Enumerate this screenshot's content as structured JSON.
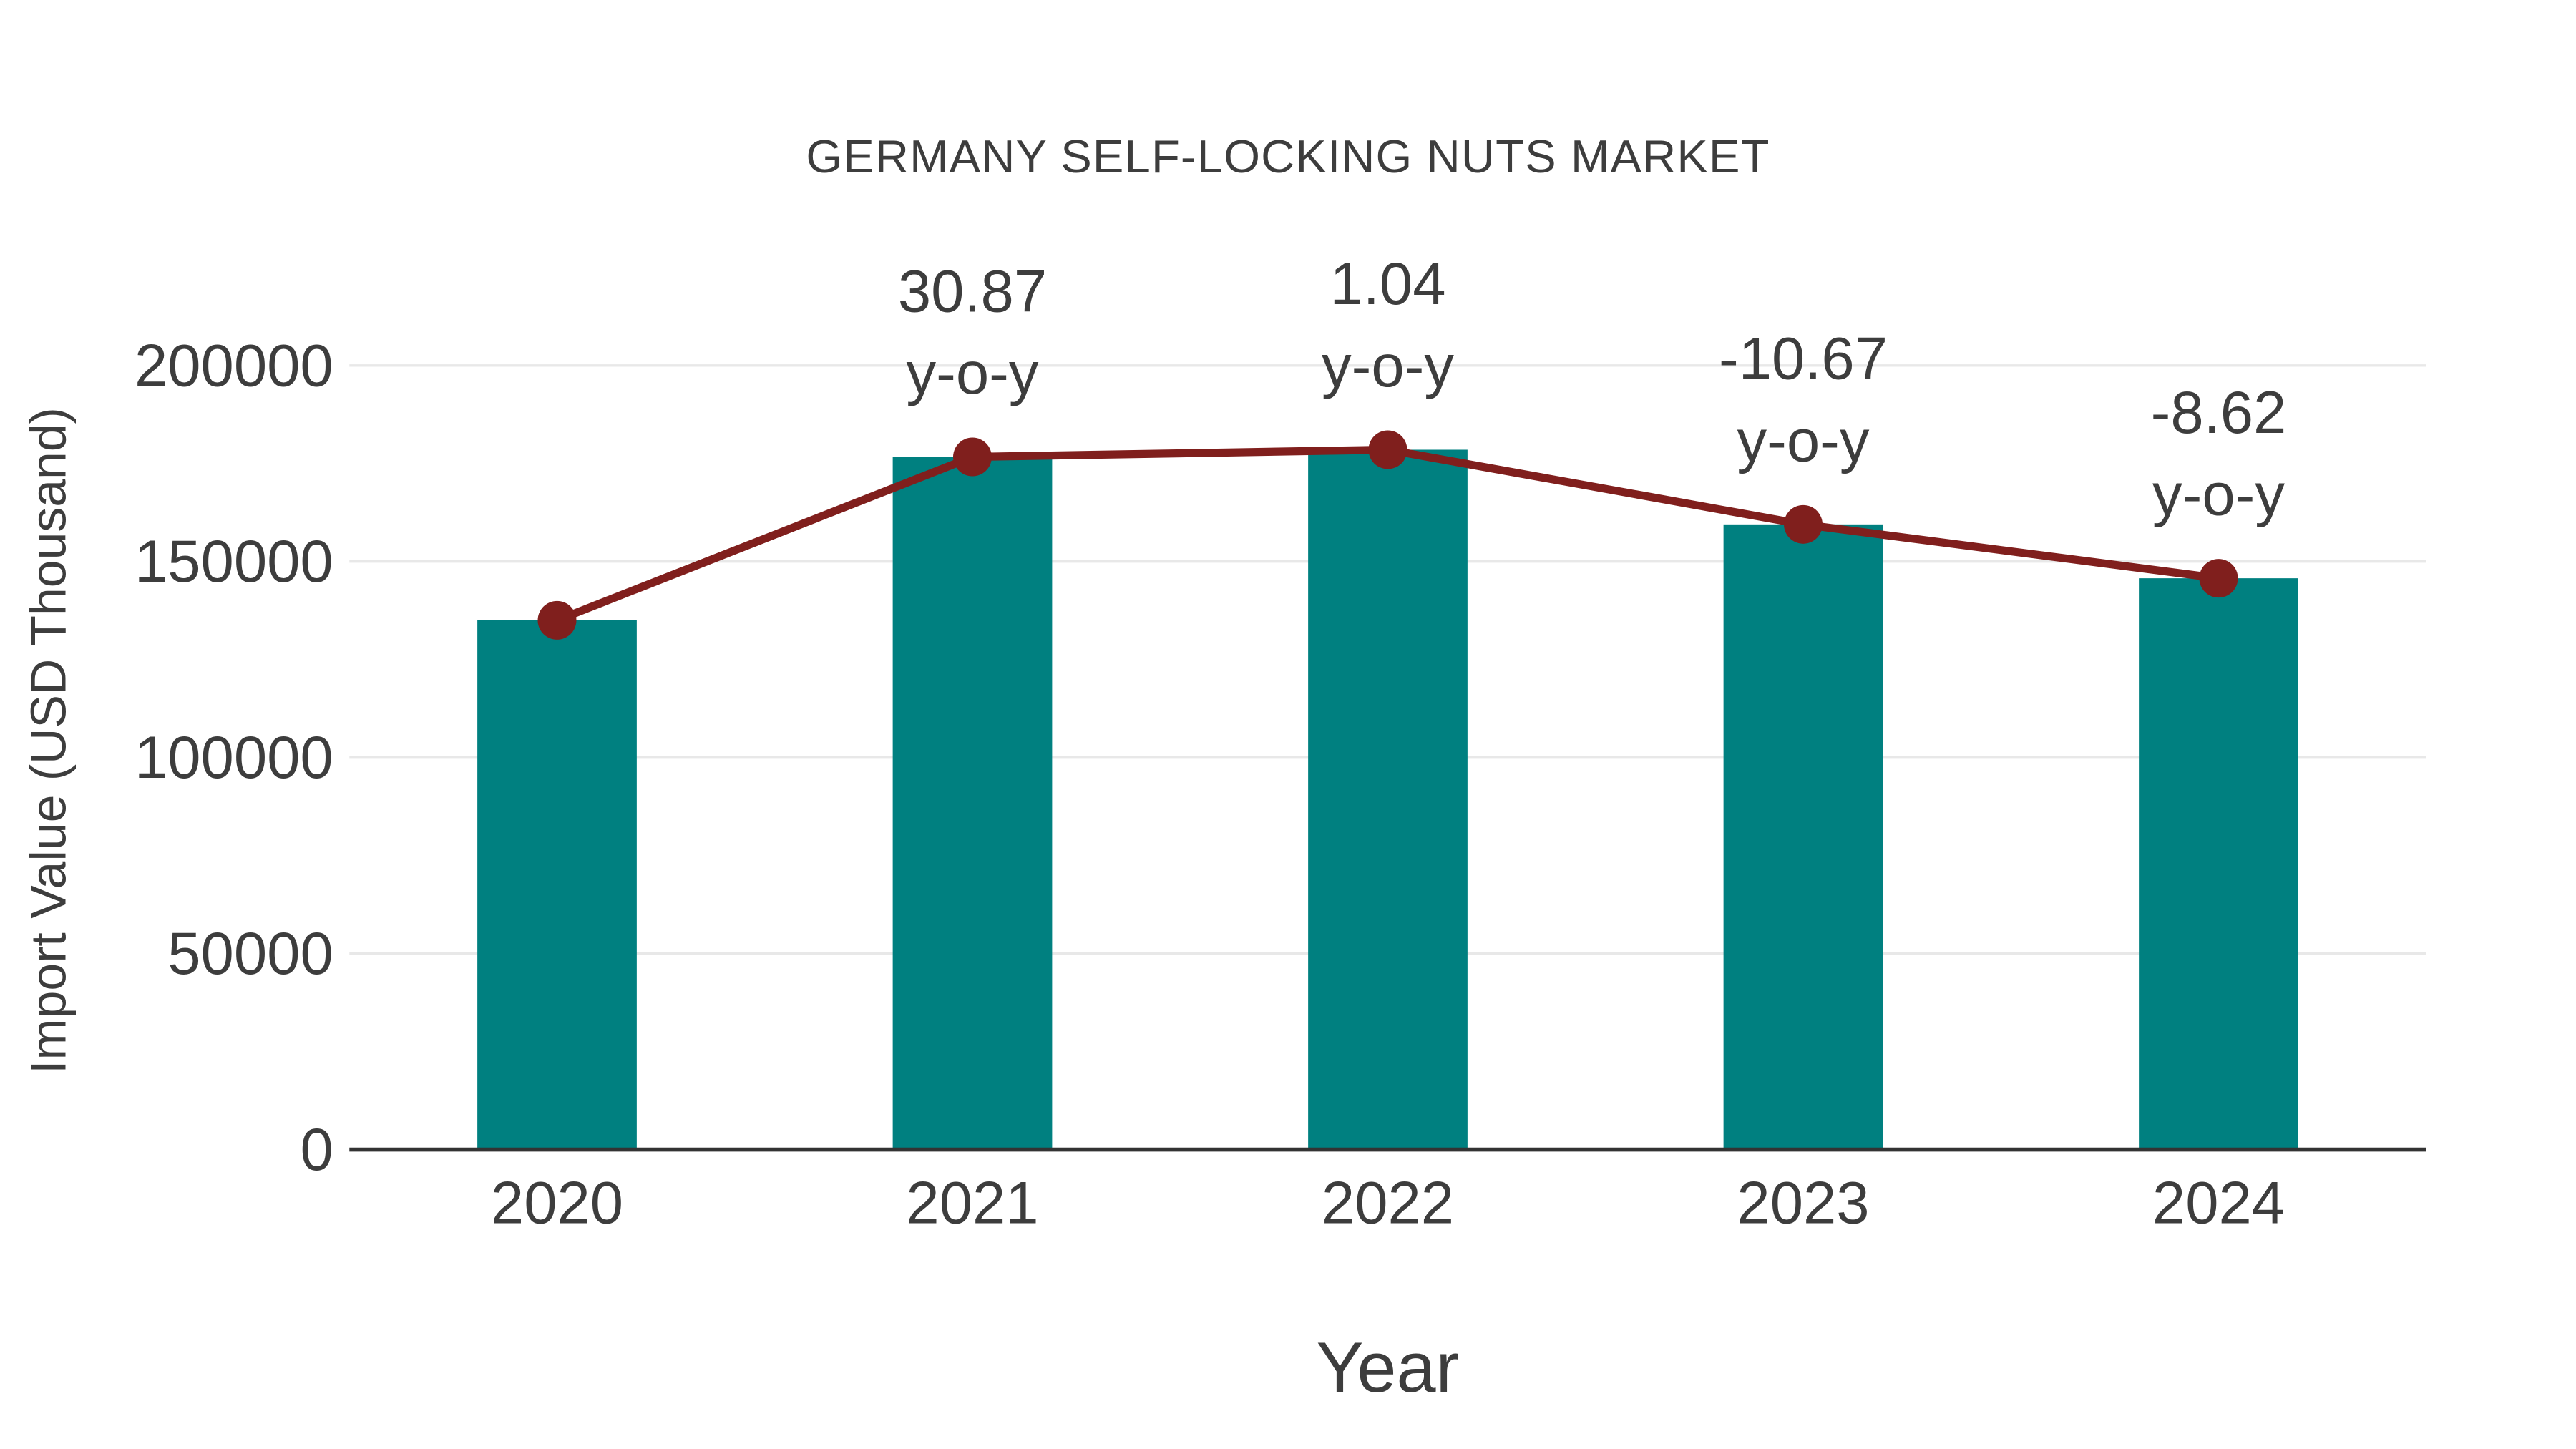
{
  "chart_data": {
    "type": "bar",
    "title": "GERMANY SELF-LOCKING NUTS MARKET",
    "xlabel": "Year",
    "ylabel": "Import Value (USD Thousand)",
    "categories": [
      "2020",
      "2021",
      "2022",
      "2023",
      "2024"
    ],
    "series": [
      {
        "name": "Import Value",
        "type": "bar",
        "color": "#008080",
        "values": [
          135000,
          176675,
          178510,
          159465,
          145720
        ]
      },
      {
        "name": "Trend",
        "type": "line",
        "color": "#801F1D",
        "values": [
          135000,
          176675,
          178510,
          159465,
          145720
        ]
      }
    ],
    "annotations": [
      {
        "category": "2021",
        "line1": "30.87",
        "line2": "y-o-y"
      },
      {
        "category": "2022",
        "line1": "1.04",
        "line2": "y-o-y"
      },
      {
        "category": "2023",
        "line1": "-10.67",
        "line2": "y-o-y"
      },
      {
        "category": "2024",
        "line1": "-8.62",
        "line2": "y-o-y"
      }
    ],
    "ylim": [
      0,
      200000
    ],
    "yticks": [
      0,
      50000,
      100000,
      150000,
      200000
    ],
    "ytick_labels": [
      "0",
      "50000",
      "100000",
      "150000",
      "200000"
    ],
    "grid": "horizontal",
    "legend": "none",
    "colors": {
      "bar": "#008080",
      "line": "#801F1D",
      "marker": "#801F1D",
      "grid": "#e8e8e8",
      "axis": "#333333",
      "text": "#3d3d3d",
      "background": "#ffffff"
    }
  }
}
